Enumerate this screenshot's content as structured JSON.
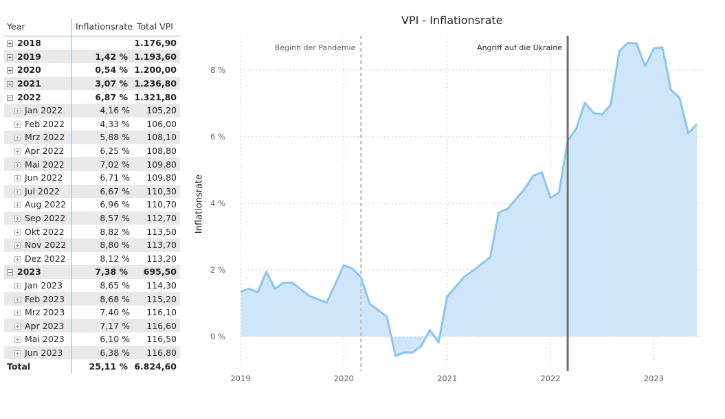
{
  "table": {
    "headers": {
      "year": "Year",
      "rate": "Inflationsrate",
      "vpi": "Total VPI"
    },
    "rows": [
      {
        "label": "2018",
        "rate": "",
        "vpi": "1.176,90",
        "level": 0,
        "toggle": "plus",
        "shade": false,
        "bold": true
      },
      {
        "label": "2019",
        "rate": "1,42 %",
        "vpi": "1.193,60",
        "level": 0,
        "toggle": "plus",
        "shade": true,
        "bold": true
      },
      {
        "label": "2020",
        "rate": "0,54 %",
        "vpi": "1.200,00",
        "level": 0,
        "toggle": "plus",
        "shade": false,
        "bold": true
      },
      {
        "label": "2021",
        "rate": "3,07 %",
        "vpi": "1.236,80",
        "level": 0,
        "toggle": "plus",
        "shade": true,
        "bold": true
      },
      {
        "label": "2022",
        "rate": "6,87 %",
        "vpi": "1.321,80",
        "level": 0,
        "toggle": "minus",
        "shade": false,
        "bold": true
      },
      {
        "label": "Jan 2022",
        "rate": "4,16 %",
        "vpi": "105,20",
        "level": 1,
        "toggle": "plus",
        "shade": true,
        "bold": false
      },
      {
        "label": "Feb 2022",
        "rate": "4,33 %",
        "vpi": "106,00",
        "level": 1,
        "toggle": "plus",
        "shade": false,
        "bold": false
      },
      {
        "label": "Mrz 2022",
        "rate": "5,88 %",
        "vpi": "108,10",
        "level": 1,
        "toggle": "plus",
        "shade": true,
        "bold": false
      },
      {
        "label": "Apr 2022",
        "rate": "6,25 %",
        "vpi": "108,80",
        "level": 1,
        "toggle": "plus",
        "shade": false,
        "bold": false
      },
      {
        "label": "Mai 2022",
        "rate": "7,02 %",
        "vpi": "109,80",
        "level": 1,
        "toggle": "plus",
        "shade": true,
        "bold": false
      },
      {
        "label": "Jun 2022",
        "rate": "6,71 %",
        "vpi": "109,80",
        "level": 1,
        "toggle": "plus",
        "shade": false,
        "bold": false
      },
      {
        "label": "Jul 2022",
        "rate": "6,67 %",
        "vpi": "110,30",
        "level": 1,
        "toggle": "plus",
        "shade": true,
        "bold": false
      },
      {
        "label": "Aug 2022",
        "rate": "6,96 %",
        "vpi": "110,70",
        "level": 1,
        "toggle": "plus",
        "shade": false,
        "bold": false
      },
      {
        "label": "Sep 2022",
        "rate": "8,57 %",
        "vpi": "112,70",
        "level": 1,
        "toggle": "plus",
        "shade": true,
        "bold": false
      },
      {
        "label": "Okt 2022",
        "rate": "8,82 %",
        "vpi": "113,50",
        "level": 1,
        "toggle": "plus",
        "shade": false,
        "bold": false
      },
      {
        "label": "Nov 2022",
        "rate": "8,80 %",
        "vpi": "113,70",
        "level": 1,
        "toggle": "plus",
        "shade": true,
        "bold": false
      },
      {
        "label": "Dez 2022",
        "rate": "8,12 %",
        "vpi": "113,20",
        "level": 1,
        "toggle": "plus",
        "shade": false,
        "bold": false
      },
      {
        "label": "2023",
        "rate": "7,38 %",
        "vpi": "695,50",
        "level": 0,
        "toggle": "minus",
        "shade": true,
        "bold": true
      },
      {
        "label": "Jan 2023",
        "rate": "8,65 %",
        "vpi": "114,30",
        "level": 1,
        "toggle": "plus",
        "shade": false,
        "bold": false
      },
      {
        "label": "Feb 2023",
        "rate": "8,68 %",
        "vpi": "115,20",
        "level": 1,
        "toggle": "plus",
        "shade": true,
        "bold": false
      },
      {
        "label": "Mrz 2023",
        "rate": "7,40 %",
        "vpi": "116,10",
        "level": 1,
        "toggle": "plus",
        "shade": false,
        "bold": false
      },
      {
        "label": "Apr 2023",
        "rate": "7,17 %",
        "vpi": "116,60",
        "level": 1,
        "toggle": "plus",
        "shade": true,
        "bold": false
      },
      {
        "label": "Mai 2023",
        "rate": "6,10 %",
        "vpi": "116,50",
        "level": 1,
        "toggle": "plus",
        "shade": false,
        "bold": false
      },
      {
        "label": "Jun 2023",
        "rate": "6,38 %",
        "vpi": "116,80",
        "level": 1,
        "toggle": "plus",
        "shade": true,
        "bold": false
      }
    ],
    "total": {
      "label": "Total",
      "rate": "25,11 %",
      "vpi": "6.824,60"
    }
  },
  "chart_data": {
    "type": "area",
    "title": "VPI - Inflationsrate",
    "xlabel": "",
    "ylabel": "Inflationsrate",
    "x_ticks": [
      "2019",
      "2020",
      "2021",
      "2022",
      "2023"
    ],
    "y_ticks": [
      "0 %",
      "2 %",
      "4 %",
      "6 %",
      "8 %"
    ],
    "ylim": [
      -0.75,
      9.0
    ],
    "xlim": [
      "2019-01",
      "2023-06"
    ],
    "grid": true,
    "colors": {
      "line": "#8cc5ee",
      "fill": "#cfe5fa",
      "grid": "#c8c8c8"
    },
    "x": [
      "2019-01",
      "2019-02",
      "2019-03",
      "2019-04",
      "2019-05",
      "2019-06",
      "2019-07",
      "2019-08",
      "2019-09",
      "2019-10",
      "2019-11",
      "2019-12",
      "2020-01",
      "2020-02",
      "2020-03",
      "2020-04",
      "2020-05",
      "2020-06",
      "2020-07",
      "2020-08",
      "2020-09",
      "2020-10",
      "2020-11",
      "2020-12",
      "2021-01",
      "2021-02",
      "2021-03",
      "2021-04",
      "2021-05",
      "2021-06",
      "2021-07",
      "2021-08",
      "2021-09",
      "2021-10",
      "2021-11",
      "2021-12",
      "2022-01",
      "2022-02",
      "2022-03",
      "2022-04",
      "2022-05",
      "2022-06",
      "2022-07",
      "2022-08",
      "2022-09",
      "2022-10",
      "2022-11",
      "2022-12",
      "2023-01",
      "2023-02",
      "2023-03",
      "2023-04",
      "2023-05",
      "2023-06"
    ],
    "values": [
      1.34,
      1.44,
      1.33,
      1.95,
      1.43,
      1.62,
      1.62,
      1.42,
      1.22,
      1.12,
      1.02,
      1.57,
      2.14,
      2.04,
      1.78,
      0.99,
      0.79,
      0.6,
      -0.58,
      -0.48,
      -0.48,
      -0.28,
      0.2,
      -0.18,
      1.2,
      1.5,
      1.8,
      1.98,
      2.18,
      2.38,
      3.73,
      3.83,
      4.13,
      4.43,
      4.83,
      4.93,
      4.16,
      4.33,
      5.88,
      6.25,
      7.02,
      6.71,
      6.67,
      6.96,
      8.57,
      8.82,
      8.8,
      8.12,
      8.65,
      8.68,
      7.4,
      7.17,
      6.1,
      6.38
    ],
    "annotations": [
      {
        "x": "2020-03",
        "label": "Beginn der Pandemie",
        "style": "dashed"
      },
      {
        "x": "2022-03",
        "label": "Angriff auf die Ukraine",
        "style": "solid"
      }
    ]
  }
}
